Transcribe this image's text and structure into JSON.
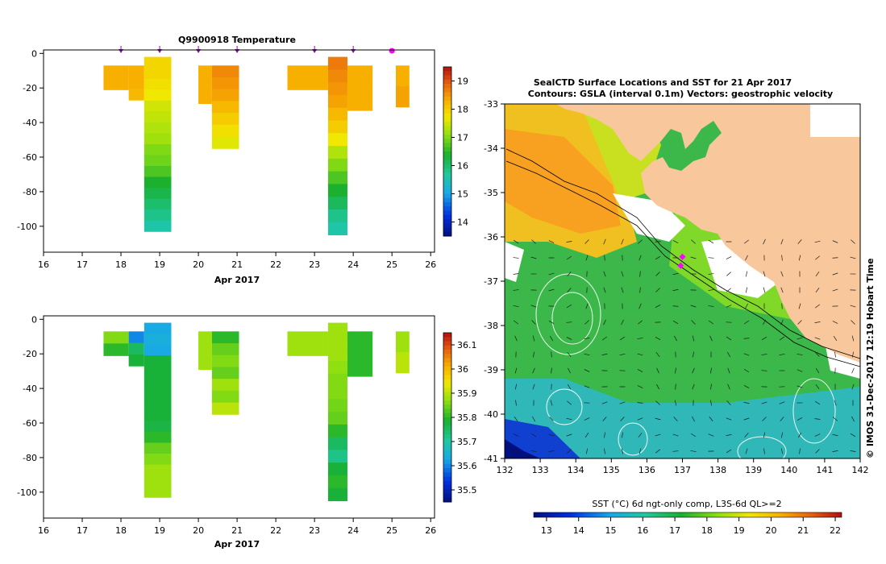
{
  "chart_data": [
    {
      "type": "heatmap",
      "title": "Q9900918  Temperature",
      "xlabel": "Apr 2017",
      "x_ticks": [
        "16",
        "17",
        "18",
        "19",
        "20",
        "21",
        "22",
        "23",
        "24",
        "25",
        "26"
      ],
      "y_ticks": [
        "0",
        "-20",
        "-40",
        "-60",
        "-80",
        "-100"
      ],
      "xlim": [
        16,
        26.1
      ],
      "ylim": [
        -115,
        2
      ],
      "colorbar_ticks": [
        "14",
        "15",
        "16",
        "17",
        "18",
        "19"
      ],
      "colorbar_range": [
        13.5,
        19.5
      ],
      "profile_markers_day": [
        18,
        19,
        20,
        21,
        23,
        24,
        25
      ],
      "profiles": [
        {
          "t0": 17.55,
          "t1": 18.2,
          "depth_top": -7,
          "depth_bottom": -21,
          "values": [
            18.3
          ]
        },
        {
          "t0": 18.2,
          "t1": 18.6,
          "depth_top": -7,
          "depth_bottom": -27,
          "values": [
            18.3,
            18.3,
            18.2
          ]
        },
        {
          "t0": 18.6,
          "t1": 19.3,
          "depth_top": -2,
          "depth_bottom": -103,
          "values": [
            17.9,
            17.9,
            17.8,
            17.7,
            17.5,
            17.4,
            17.3,
            17.2,
            17.0,
            16.9,
            16.7,
            16.4,
            16.2,
            16.0,
            15.8,
            15.6
          ]
        },
        {
          "t0": 20.0,
          "t1": 20.35,
          "depth_top": -7,
          "depth_bottom": -29,
          "values": [
            18.3,
            18.3
          ]
        },
        {
          "t0": 20.35,
          "t1": 21.05,
          "depth_top": -7,
          "depth_bottom": -55,
          "values": [
            18.6,
            18.5,
            18.4,
            18.2,
            18.0,
            17.8,
            17.6
          ]
        },
        {
          "t0": 22.3,
          "t1": 23.35,
          "depth_top": -7,
          "depth_bottom": -21,
          "values": [
            18.3
          ]
        },
        {
          "t0": 23.35,
          "t1": 23.85,
          "depth_top": -2,
          "depth_bottom": -105,
          "values": [
            18.7,
            18.6,
            18.5,
            18.4,
            18.2,
            18.0,
            17.7,
            17.3,
            17.0,
            16.7,
            16.4,
            16.1,
            15.8,
            15.6
          ]
        },
        {
          "t0": 23.85,
          "t1": 24.5,
          "depth_top": -7,
          "depth_bottom": -33,
          "values": [
            18.3,
            18.3
          ]
        },
        {
          "t0": 25.1,
          "t1": 25.45,
          "depth_top": -7,
          "depth_bottom": -31,
          "values": [
            18.3,
            18.4
          ]
        }
      ]
    },
    {
      "type": "heatmap",
      "title": "",
      "xlabel": "Apr 2017",
      "x_ticks": [
        "16",
        "17",
        "18",
        "19",
        "20",
        "21",
        "22",
        "23",
        "24",
        "25",
        "26"
      ],
      "y_ticks": [
        "0",
        "-20",
        "-40",
        "-60",
        "-80",
        "-100"
      ],
      "xlim": [
        16,
        26.1
      ],
      "ylim": [
        -115,
        2
      ],
      "colorbar_ticks": [
        "35.5",
        "35.6",
        "35.7",
        "35.8",
        "35.9",
        "36",
        "36.1"
      ],
      "colorbar_range": [
        35.45,
        36.15
      ],
      "profiles": [
        {
          "t0": 17.55,
          "t1": 18.2,
          "depth_top": -7,
          "depth_bottom": -21,
          "values": [
            35.86,
            35.8
          ]
        },
        {
          "t0": 18.2,
          "t1": 18.6,
          "depth_top": -7,
          "depth_bottom": -27,
          "values": [
            35.6,
            35.75,
            35.78
          ]
        },
        {
          "t0": 18.6,
          "t1": 19.3,
          "depth_top": -2,
          "depth_bottom": -103,
          "values": [
            35.63,
            35.64,
            35.63,
            35.78,
            35.78,
            35.78,
            35.78,
            35.78,
            35.78,
            35.77,
            35.8,
            35.84,
            35.86,
            35.88,
            35.88,
            35.88
          ]
        },
        {
          "t0": 20.0,
          "t1": 20.35,
          "depth_top": -7,
          "depth_bottom": -29,
          "values": [
            35.88,
            35.88
          ]
        },
        {
          "t0": 20.35,
          "t1": 21.05,
          "depth_top": -7,
          "depth_bottom": -55,
          "values": [
            35.8,
            35.84,
            35.86,
            35.84,
            35.88,
            35.86,
            35.9
          ]
        },
        {
          "t0": 22.3,
          "t1": 23.35,
          "depth_top": -7,
          "depth_bottom": -21,
          "values": [
            35.88
          ]
        },
        {
          "t0": 23.35,
          "t1": 23.85,
          "depth_top": -2,
          "depth_bottom": -105,
          "values": [
            35.88,
            35.88,
            35.88,
            35.87,
            35.86,
            35.86,
            35.85,
            35.84,
            35.8,
            35.75,
            35.72,
            35.78,
            35.8,
            35.78
          ]
        },
        {
          "t0": 23.85,
          "t1": 24.5,
          "depth_top": -7,
          "depth_bottom": -33,
          "values": [
            35.8,
            35.8
          ]
        },
        {
          "t0": 25.1,
          "t1": 25.45,
          "depth_top": -7,
          "depth_bottom": -31,
          "values": [
            35.88,
            35.9
          ]
        }
      ]
    },
    {
      "type": "heatmap",
      "title": "SealCTD Surface Locations and SST for 21 Apr 2017",
      "subtitle": "Contours: GSLA (interval 0.1m) Vectors: geostrophic velocity",
      "x_ticks": [
        "132",
        "133",
        "134",
        "135",
        "136",
        "137",
        "138",
        "139",
        "140",
        "141",
        "142"
      ],
      "y_ticks": [
        "-33",
        "-34",
        "-35",
        "-36",
        "-37",
        "-38",
        "-39",
        "-40",
        "-41"
      ],
      "xlim": [
        132,
        142
      ],
      "ylim": [
        -41,
        -33
      ],
      "colorbar_label": "SST (°C) 6d ngt-only comp, L3S-6d QL>=2",
      "colorbar_ticks": [
        "13",
        "14",
        "15",
        "16",
        "17",
        "18",
        "19",
        "20",
        "21",
        "22"
      ],
      "colorbar_range": [
        12.6,
        22.2
      ],
      "credit": "© IMOS 31-Dec-2017 12:19 Hobart Time",
      "seal_locations": [
        [
          137.0,
          -36.45
        ],
        [
          136.95,
          -36.65
        ]
      ]
    }
  ],
  "colors": {
    "land": "#f8c89c",
    "marker": "#9b00c8",
    "marker_last": "#ff00ff"
  }
}
